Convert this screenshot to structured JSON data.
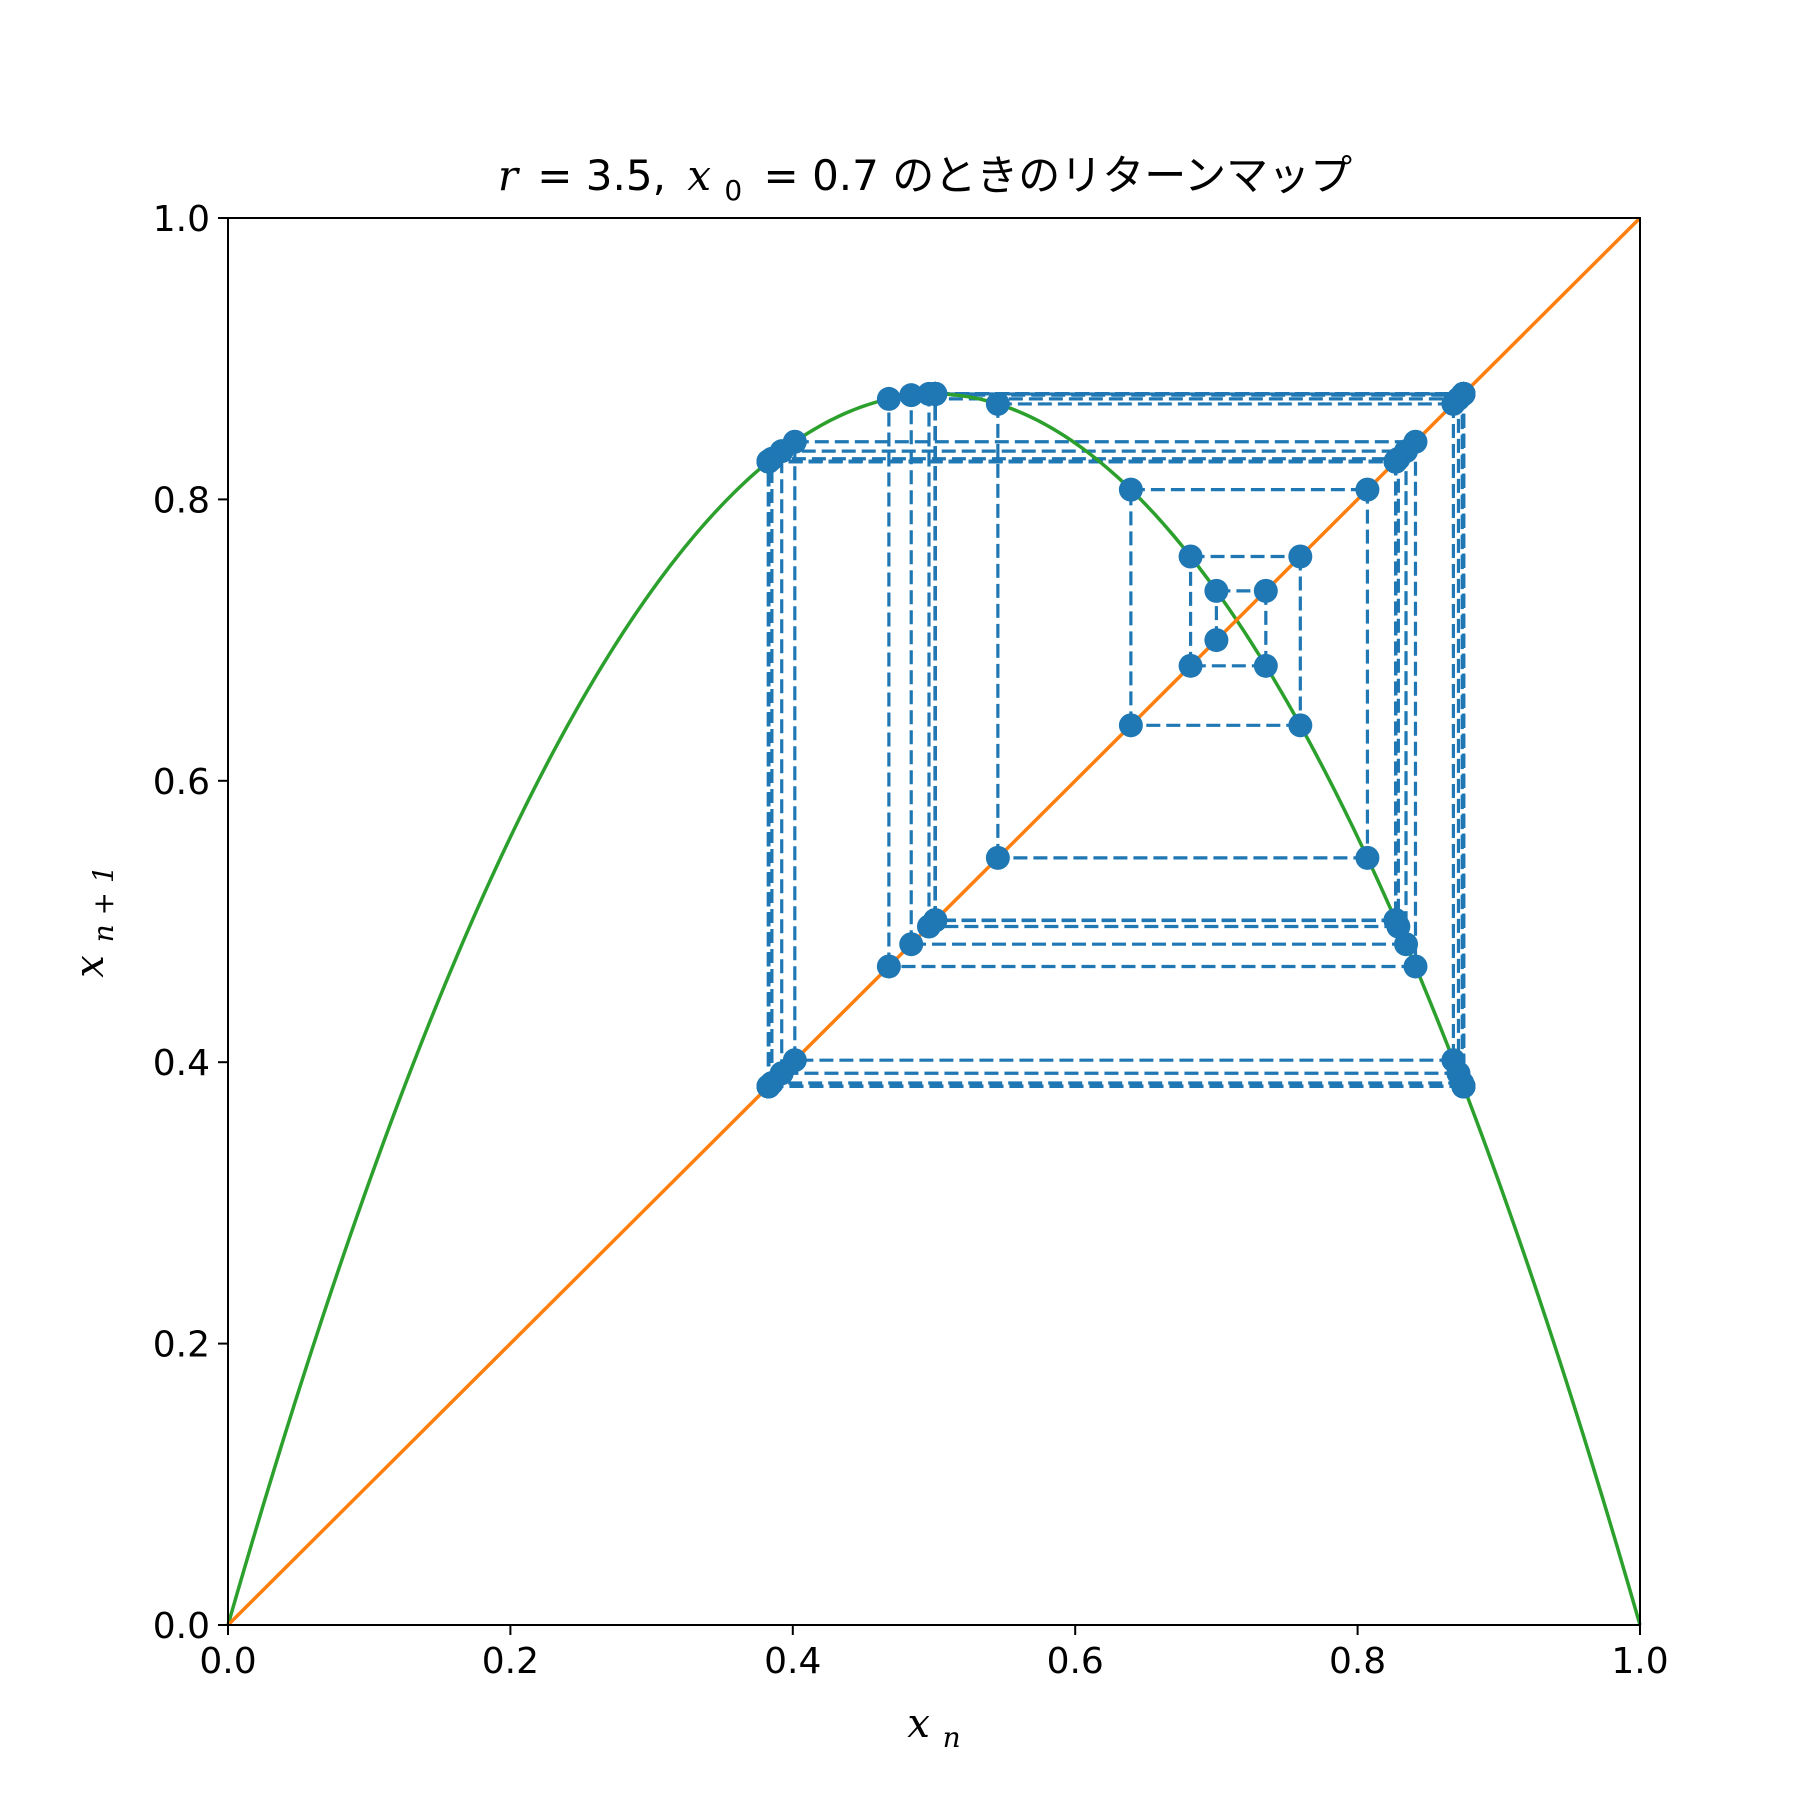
{
  "chart_data": {
    "type": "line",
    "title": {
      "r_symbol": "r",
      "r_value": "= 3.5,",
      "x_symbol": "x",
      "x_subscript": "0",
      "x_value": "= 0.7",
      "suffix": "のときのリターンマップ"
    },
    "xlabel": {
      "base": "x",
      "subscript": "n"
    },
    "ylabel": {
      "base": "x",
      "subscript": "n + 1"
    },
    "xlim": [
      0,
      1
    ],
    "ylim": [
      0,
      1
    ],
    "xticks": [
      "0.0",
      "0.2",
      "0.4",
      "0.6",
      "0.8",
      "1.0"
    ],
    "yticks": [
      "0.0",
      "0.2",
      "0.4",
      "0.6",
      "0.8",
      "1.0"
    ],
    "r": 3.5,
    "x0": 0.7,
    "iterations": 60,
    "series": [
      {
        "role": "logistic-map-curve",
        "function": "r * x * (1 - x)",
        "color": "#2ca02c"
      },
      {
        "role": "identity-line",
        "function": "x",
        "color": "#ff7f0e"
      },
      {
        "role": "cobweb-trajectory",
        "color": "#1f77b4",
        "marker": "circle",
        "linestyle": "dashed"
      }
    ],
    "grid": false,
    "legend": "none"
  }
}
